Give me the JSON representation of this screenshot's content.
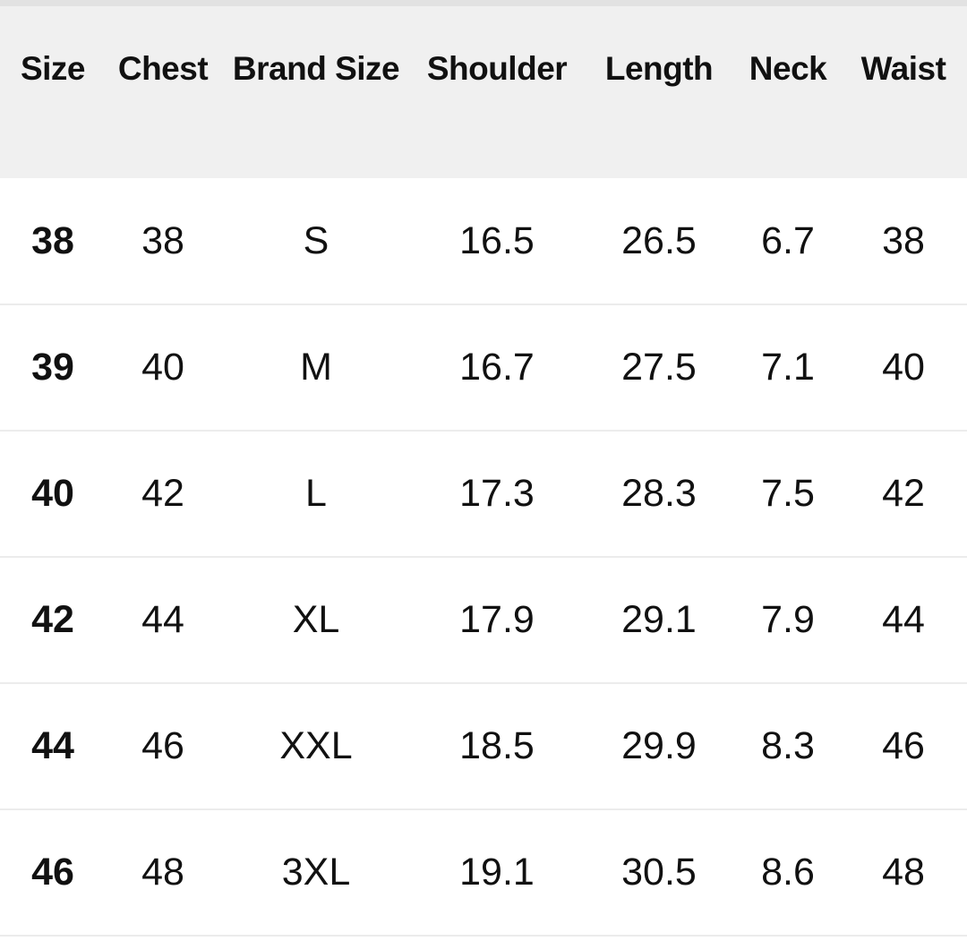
{
  "table": {
    "headers": [
      "Size",
      "Chest",
      "Brand Size",
      "Shoulder",
      "Length",
      "Neck",
      "Waist"
    ],
    "rows": [
      [
        "38",
        "38",
        "S",
        "16.5",
        "26.5",
        "6.7",
        "38"
      ],
      [
        "39",
        "40",
        "M",
        "16.7",
        "27.5",
        "7.1",
        "40"
      ],
      [
        "40",
        "42",
        "L",
        "17.3",
        "28.3",
        "7.5",
        "42"
      ],
      [
        "42",
        "44",
        "XL",
        "17.9",
        "29.1",
        "7.9",
        "44"
      ],
      [
        "44",
        "46",
        "XXL",
        "18.5",
        "29.9",
        "8.3",
        "46"
      ],
      [
        "46",
        "48",
        "3XL",
        "19.1",
        "30.5",
        "8.6",
        "48"
      ]
    ]
  },
  "colors": {
    "header_bg": "#f0f0f0",
    "divider": "#ececec"
  }
}
